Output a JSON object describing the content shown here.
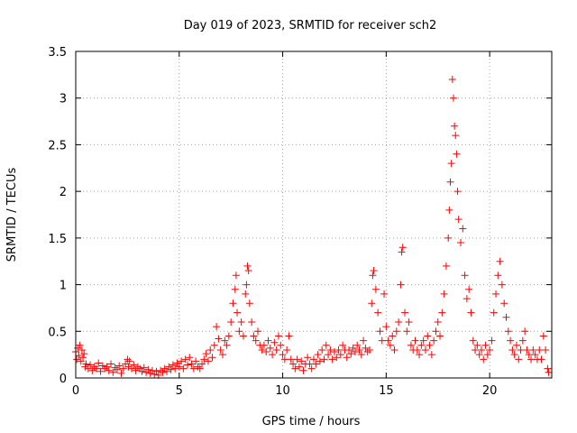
{
  "chart_data": {
    "type": "scatter",
    "title": "Day 019 of 2023, SRMTID for receiver sch2",
    "xlabel": "GPS time / hours",
    "ylabel": "SRMTID / TECUs",
    "xlim": [
      0,
      23
    ],
    "ylim": [
      0,
      3.5
    ],
    "xticks": [
      0,
      5,
      10,
      15,
      20
    ],
    "yticks": [
      0,
      0.5,
      1,
      1.5,
      2,
      2.5,
      3,
      3.5
    ],
    "xtick_labels": [
      "0",
      "5",
      "10",
      "15",
      "20"
    ],
    "ytick_labels": [
      "0",
      "0.5",
      "1",
      "1.5",
      "2",
      "2.5",
      "3",
      "3.5"
    ],
    "grid": true,
    "marker": "+",
    "color": "#ff0000",
    "series": [
      {
        "name": "SRMTID",
        "points": [
          [
            0.0,
            0.28
          ],
          [
            0.05,
            0.2
          ],
          [
            0.1,
            0.32
          ],
          [
            0.15,
            0.24
          ],
          [
            0.2,
            0.35
          ],
          [
            0.25,
            0.18
          ],
          [
            0.3,
            0.3
          ],
          [
            0.35,
            0.22
          ],
          [
            0.4,
            0.26
          ],
          [
            0.45,
            0.12
          ],
          [
            0.5,
            0.15
          ],
          [
            0.6,
            0.1
          ],
          [
            0.7,
            0.14
          ],
          [
            0.8,
            0.08
          ],
          [
            0.9,
            0.12
          ],
          [
            1.0,
            0.1
          ],
          [
            1.1,
            0.16
          ],
          [
            1.2,
            0.07
          ],
          [
            1.3,
            0.13
          ],
          [
            1.4,
            0.1
          ],
          [
            1.5,
            0.12
          ],
          [
            1.6,
            0.08
          ],
          [
            1.7,
            0.15
          ],
          [
            1.8,
            0.06
          ],
          [
            1.9,
            0.11
          ],
          [
            2.0,
            0.09
          ],
          [
            2.1,
            0.13
          ],
          [
            2.2,
            0.05
          ],
          [
            2.3,
            0.1
          ],
          [
            2.4,
            0.15
          ],
          [
            2.5,
            0.2
          ],
          [
            2.55,
            0.12
          ],
          [
            2.6,
            0.18
          ],
          [
            2.7,
            0.1
          ],
          [
            2.8,
            0.14
          ],
          [
            2.9,
            0.08
          ],
          [
            3.0,
            0.12
          ],
          [
            3.1,
            0.1
          ],
          [
            3.2,
            0.07
          ],
          [
            3.3,
            0.11
          ],
          [
            3.4,
            0.06
          ],
          [
            3.5,
            0.09
          ],
          [
            3.6,
            0.05
          ],
          [
            3.7,
            0.08
          ],
          [
            3.8,
            0.04
          ],
          [
            3.9,
            0.07
          ],
          [
            4.0,
            0.03
          ],
          [
            4.1,
            0.08
          ],
          [
            4.2,
            0.06
          ],
          [
            4.3,
            0.1
          ],
          [
            4.4,
            0.07
          ],
          [
            4.5,
            0.12
          ],
          [
            4.6,
            0.09
          ],
          [
            4.7,
            0.14
          ],
          [
            4.8,
            0.1
          ],
          [
            4.9,
            0.16
          ],
          [
            5.0,
            0.12
          ],
          [
            5.1,
            0.18
          ],
          [
            5.2,
            0.1
          ],
          [
            5.3,
            0.2
          ],
          [
            5.4,
            0.14
          ],
          [
            5.5,
            0.22
          ],
          [
            5.6,
            0.15
          ],
          [
            5.7,
            0.1
          ],
          [
            5.8,
            0.18
          ],
          [
            5.9,
            0.12
          ],
          [
            6.0,
            0.1
          ],
          [
            6.1,
            0.15
          ],
          [
            6.2,
            0.2
          ],
          [
            6.3,
            0.26
          ],
          [
            6.4,
            0.18
          ],
          [
            6.5,
            0.3
          ],
          [
            6.6,
            0.22
          ],
          [
            6.7,
            0.35
          ],
          [
            6.8,
            0.55
          ],
          [
            6.9,
            0.42
          ],
          [
            7.0,
            0.3
          ],
          [
            7.1,
            0.25
          ],
          [
            7.2,
            0.4
          ],
          [
            7.3,
            0.35
          ],
          [
            7.4,
            0.45
          ],
          [
            7.5,
            0.6
          ],
          [
            7.6,
            0.8
          ],
          [
            7.7,
            0.95
          ],
          [
            7.75,
            1.1
          ],
          [
            7.8,
            0.7
          ],
          [
            7.9,
            0.5
          ],
          [
            8.0,
            0.6
          ],
          [
            8.1,
            0.45
          ],
          [
            8.2,
            0.9
          ],
          [
            8.25,
            1.0
          ],
          [
            8.3,
            1.2
          ],
          [
            8.35,
            1.15
          ],
          [
            8.4,
            0.8
          ],
          [
            8.5,
            0.6
          ],
          [
            8.6,
            0.45
          ],
          [
            8.7,
            0.4
          ],
          [
            8.8,
            0.5
          ],
          [
            8.9,
            0.35
          ],
          [
            9.0,
            0.3
          ],
          [
            9.1,
            0.35
          ],
          [
            9.2,
            0.28
          ],
          [
            9.3,
            0.4
          ],
          [
            9.4,
            0.32
          ],
          [
            9.5,
            0.25
          ],
          [
            9.6,
            0.38
          ],
          [
            9.7,
            0.3
          ],
          [
            9.8,
            0.45
          ],
          [
            9.9,
            0.35
          ],
          [
            10.0,
            0.25
          ],
          [
            10.1,
            0.2
          ],
          [
            10.2,
            0.3
          ],
          [
            10.3,
            0.45
          ],
          [
            10.4,
            0.2
          ],
          [
            10.5,
            0.15
          ],
          [
            10.6,
            0.1
          ],
          [
            10.7,
            0.2
          ],
          [
            10.8,
            0.12
          ],
          [
            10.9,
            0.18
          ],
          [
            11.0,
            0.08
          ],
          [
            11.1,
            0.15
          ],
          [
            11.2,
            0.22
          ],
          [
            11.3,
            0.15
          ],
          [
            11.4,
            0.1
          ],
          [
            11.5,
            0.2
          ],
          [
            11.6,
            0.15
          ],
          [
            11.7,
            0.25
          ],
          [
            11.8,
            0.18
          ],
          [
            11.9,
            0.3
          ],
          [
            12.0,
            0.2
          ],
          [
            12.1,
            0.35
          ],
          [
            12.2,
            0.25
          ],
          [
            12.3,
            0.3
          ],
          [
            12.4,
            0.2
          ],
          [
            12.5,
            0.28
          ],
          [
            12.6,
            0.22
          ],
          [
            12.7,
            0.3
          ],
          [
            12.8,
            0.25
          ],
          [
            12.9,
            0.35
          ],
          [
            13.0,
            0.3
          ],
          [
            13.1,
            0.22
          ],
          [
            13.2,
            0.3
          ],
          [
            13.3,
            0.26
          ],
          [
            13.4,
            0.32
          ],
          [
            13.5,
            0.28
          ],
          [
            13.6,
            0.35
          ],
          [
            13.7,
            0.3
          ],
          [
            13.8,
            0.25
          ],
          [
            13.9,
            0.4
          ],
          [
            14.0,
            0.32
          ],
          [
            14.1,
            0.28
          ],
          [
            14.2,
            0.3
          ],
          [
            14.3,
            0.8
          ],
          [
            14.35,
            1.1
          ],
          [
            14.4,
            1.15
          ],
          [
            14.5,
            0.95
          ],
          [
            14.6,
            0.7
          ],
          [
            14.7,
            0.5
          ],
          [
            14.8,
            0.4
          ],
          [
            14.9,
            0.9
          ],
          [
            15.0,
            0.55
          ],
          [
            15.1,
            0.4
          ],
          [
            15.2,
            0.35
          ],
          [
            15.3,
            0.45
          ],
          [
            15.4,
            0.3
          ],
          [
            15.5,
            0.5
          ],
          [
            15.6,
            0.6
          ],
          [
            15.7,
            1.0
          ],
          [
            15.75,
            1.35
          ],
          [
            15.8,
            1.4
          ],
          [
            15.9,
            0.7
          ],
          [
            16.0,
            0.5
          ],
          [
            16.1,
            0.6
          ],
          [
            16.2,
            0.35
          ],
          [
            16.3,
            0.3
          ],
          [
            16.4,
            0.4
          ],
          [
            16.5,
            0.3
          ],
          [
            16.6,
            0.25
          ],
          [
            16.7,
            0.35
          ],
          [
            16.8,
            0.4
          ],
          [
            16.9,
            0.3
          ],
          [
            17.0,
            0.45
          ],
          [
            17.1,
            0.35
          ],
          [
            17.2,
            0.25
          ],
          [
            17.3,
            0.4
          ],
          [
            17.4,
            0.5
          ],
          [
            17.5,
            0.6
          ],
          [
            17.6,
            0.45
          ],
          [
            17.7,
            0.7
          ],
          [
            17.8,
            0.9
          ],
          [
            17.9,
            1.2
          ],
          [
            18.0,
            1.5
          ],
          [
            18.05,
            1.8
          ],
          [
            18.1,
            2.1
          ],
          [
            18.15,
            2.3
          ],
          [
            18.2,
            3.2
          ],
          [
            18.25,
            3.0
          ],
          [
            18.3,
            2.7
          ],
          [
            18.35,
            2.6
          ],
          [
            18.4,
            2.4
          ],
          [
            18.45,
            2.0
          ],
          [
            18.5,
            1.7
          ],
          [
            18.6,
            1.45
          ],
          [
            18.7,
            1.6
          ],
          [
            18.8,
            1.1
          ],
          [
            18.9,
            0.85
          ],
          [
            19.0,
            0.95
          ],
          [
            19.1,
            0.7
          ],
          [
            19.2,
            0.4
          ],
          [
            19.3,
            0.3
          ],
          [
            19.4,
            0.35
          ],
          [
            19.5,
            0.25
          ],
          [
            19.6,
            0.3
          ],
          [
            19.7,
            0.2
          ],
          [
            19.8,
            0.35
          ],
          [
            19.9,
            0.25
          ],
          [
            20.0,
            0.3
          ],
          [
            20.1,
            0.4
          ],
          [
            20.2,
            0.7
          ],
          [
            20.3,
            0.9
          ],
          [
            20.4,
            1.1
          ],
          [
            20.5,
            1.25
          ],
          [
            20.6,
            1.0
          ],
          [
            20.7,
            0.8
          ],
          [
            20.8,
            0.65
          ],
          [
            20.9,
            0.5
          ],
          [
            21.0,
            0.4
          ],
          [
            21.1,
            0.3
          ],
          [
            21.2,
            0.25
          ],
          [
            21.3,
            0.35
          ],
          [
            21.4,
            0.2
          ],
          [
            21.5,
            0.3
          ],
          [
            21.6,
            0.4
          ],
          [
            21.7,
            0.5
          ],
          [
            21.8,
            0.3
          ],
          [
            21.9,
            0.25
          ],
          [
            22.0,
            0.2
          ],
          [
            22.1,
            0.3
          ],
          [
            22.2,
            0.25
          ],
          [
            22.3,
            0.2
          ],
          [
            22.4,
            0.3
          ],
          [
            22.5,
            0.2
          ],
          [
            22.6,
            0.45
          ],
          [
            22.7,
            0.3
          ],
          [
            22.8,
            0.1
          ],
          [
            22.85,
            0.06
          ]
        ]
      }
    ]
  }
}
